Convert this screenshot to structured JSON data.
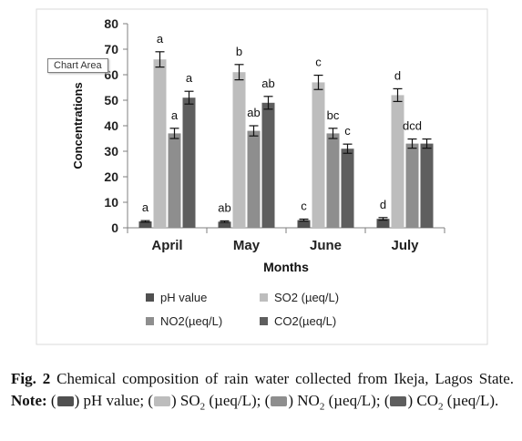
{
  "chart_data": {
    "type": "bar",
    "categories": [
      "April",
      "May",
      "June",
      "July"
    ],
    "series": [
      {
        "name": "pH value",
        "color": "#505050",
        "values": [
          2.5,
          2.4,
          3.0,
          3.5
        ],
        "errors": [
          0.3,
          0.3,
          0.4,
          0.5
        ],
        "letters": [
          "a",
          "ab",
          "c",
          "d"
        ]
      },
      {
        "name": "SO2 (µeq/L)",
        "color": "#bdbdbd",
        "values": [
          66,
          61,
          57,
          52
        ],
        "errors": [
          3.0,
          3.0,
          2.8,
          2.5
        ],
        "letters": [
          "a",
          "b",
          "c",
          "d"
        ]
      },
      {
        "name": "NO2(µeq/L)",
        "color": "#8e8e8e",
        "values": [
          37,
          38,
          37,
          33
        ],
        "errors": [
          2.0,
          2.0,
          2.0,
          1.8
        ],
        "letters": [
          "a",
          "ab",
          "bc",
          "dcd"
        ]
      },
      {
        "name": "CO2(µeq/L)",
        "color": "#5e5e5e",
        "values": [
          51,
          49,
          31,
          33
        ],
        "errors": [
          2.5,
          2.5,
          1.8,
          1.8
        ],
        "letters": [
          "a",
          "ab",
          "c",
          ""
        ]
      }
    ],
    "xlabel": "Months",
    "ylabel": "Concentrations",
    "ylim": [
      0,
      80
    ],
    "yticks": [
      "0",
      "10",
      "20",
      "30",
      "40",
      "50",
      "60",
      "70",
      "80"
    ],
    "legend_position": "bottom",
    "grid": false
  },
  "tooltip": "Chart Area",
  "caption": {
    "fig": "Fig. 2",
    "text": "Chemical composition of rain water collected from Ikeja, Lagos State.",
    "note_label": "Note:",
    "swatch_colors": [
      "#505050",
      "#bdbdbd",
      "#8e8e8e",
      "#5e5e5e"
    ],
    "items": [
      "pH value;",
      "SO",
      "(µeq/L);",
      "NO",
      "(µeq/L);",
      "CO",
      "(µeq/L)."
    ],
    "subs": [
      "2",
      "2",
      "2"
    ]
  }
}
